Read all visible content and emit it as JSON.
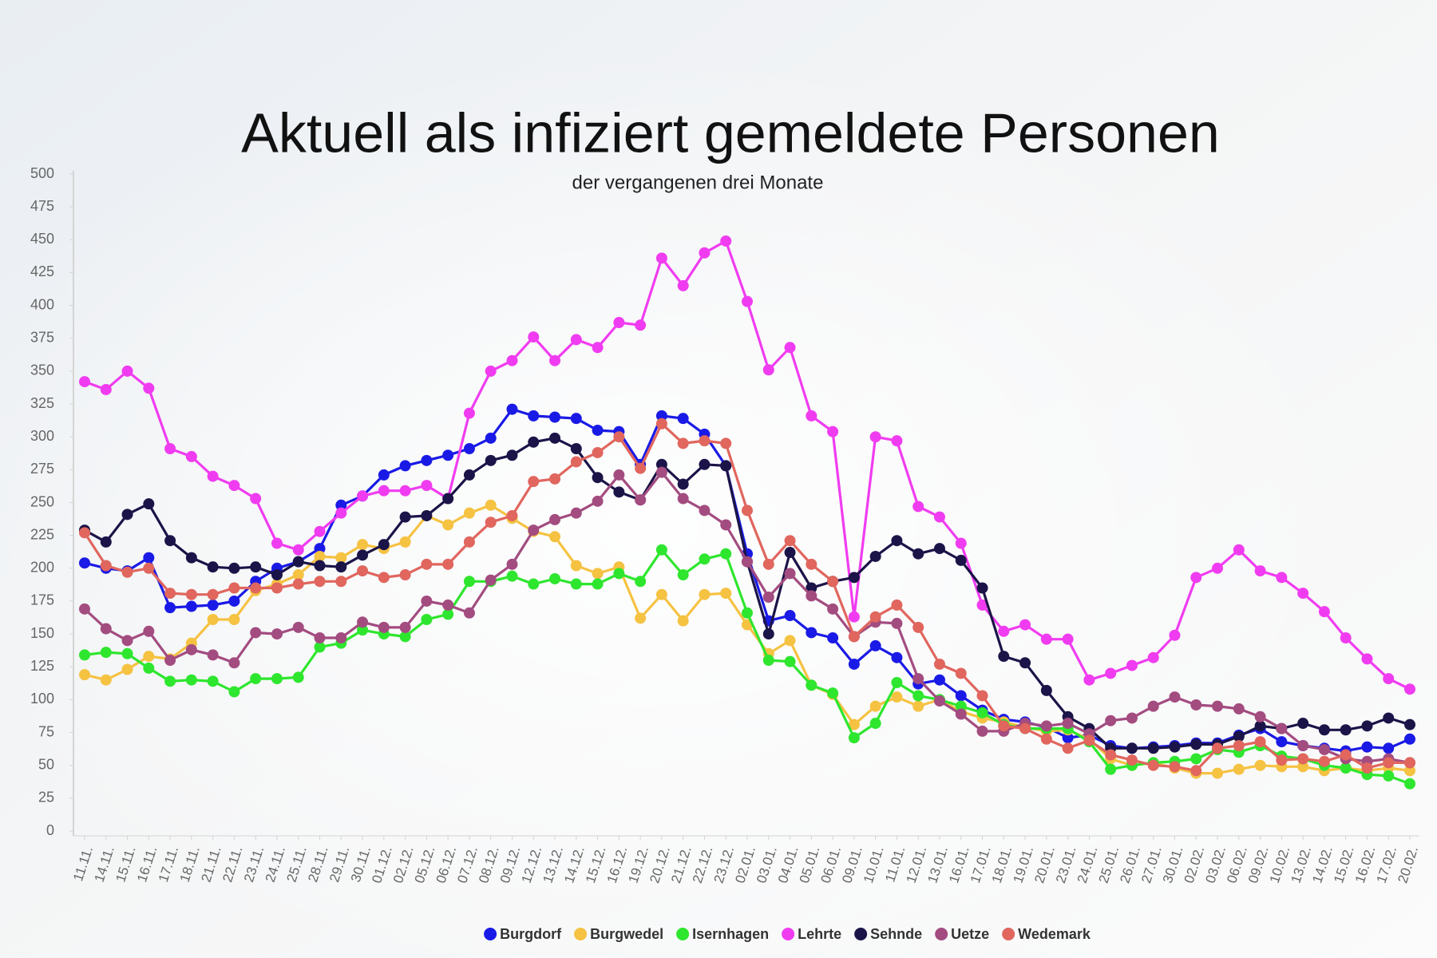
{
  "chart_data": {
    "type": "line",
    "title": "Aktuell als infiziert gemeldete Personen",
    "subtitle": "der vergangenen drei Monate",
    "categories": [
      "11.11.",
      "14.11.",
      "15.11.",
      "16.11.",
      "17.11.",
      "18.11.",
      "21.11.",
      "22.11.",
      "23.11.",
      "24.11.",
      "25.11.",
      "28.11.",
      "29.11.",
      "30.11.",
      "01.12.",
      "02.12.",
      "05.12.",
      "06.12.",
      "07.12.",
      "08.12.",
      "09.12.",
      "12.12.",
      "13.12.",
      "14.12.",
      "15.12.",
      "16.12.",
      "19.12.",
      "20.12.",
      "21.12.",
      "22.12.",
      "23.12.",
      "02.01.",
      "03.01.",
      "04.01.",
      "05.01.",
      "06.01.",
      "09.01.",
      "10.01.",
      "11.01.",
      "12.01.",
      "13.01.",
      "16.01.",
      "17.01.",
      "18.01.",
      "19.01.",
      "20.01.",
      "23.01.",
      "24.01.",
      "25.01.",
      "26.01.",
      "27.01.",
      "30.01.",
      "02.02.",
      "03.02.",
      "06.02.",
      "09.02.",
      "10.02.",
      "13.02.",
      "14.02.",
      "15.02.",
      "16.02.",
      "17.02.",
      "20.02."
    ],
    "series": [
      {
        "name": "Burgdorf",
        "color": "#1a1ae6",
        "values": [
          204,
          200,
          198,
          208,
          170,
          171,
          172,
          175,
          190,
          200,
          205,
          215,
          248,
          255,
          271,
          278,
          282,
          286,
          291,
          299,
          321,
          316,
          315,
          314,
          305,
          304,
          279,
          316,
          314,
          302,
          278,
          211,
          160,
          164,
          151,
          147,
          127,
          141,
          132,
          112,
          115,
          103,
          92,
          85,
          83,
          79,
          71,
          73,
          65,
          63,
          64,
          65,
          67,
          67,
          73,
          78,
          68,
          65,
          63,
          61,
          64,
          63,
          70
        ]
      },
      {
        "name": "Burgwedel",
        "color": "#f5c242",
        "values": [
          119,
          115,
          123,
          133,
          131,
          143,
          161,
          161,
          183,
          188,
          195,
          209,
          208,
          218,
          215,
          220,
          240,
          233,
          242,
          248,
          238,
          228,
          224,
          202,
          196,
          201,
          162,
          180,
          160,
          180,
          181,
          157,
          135,
          145,
          111,
          104,
          81,
          95,
          102,
          95,
          100,
          91,
          86,
          83,
          79,
          76,
          77,
          70,
          55,
          50,
          52,
          48,
          44,
          44,
          47,
          50,
          49,
          49,
          46,
          48,
          46,
          48,
          46
        ]
      },
      {
        "name": "Isernhagen",
        "color": "#2ee62e",
        "values": [
          134,
          136,
          135,
          124,
          114,
          115,
          114,
          106,
          116,
          116,
          117,
          140,
          143,
          153,
          150,
          148,
          161,
          165,
          190,
          190,
          194,
          188,
          192,
          188,
          188,
          196,
          190,
          214,
          195,
          207,
          211,
          166,
          130,
          129,
          111,
          105,
          71,
          82,
          113,
          103,
          100,
          95,
          90,
          81,
          78,
          78,
          78,
          68,
          47,
          50,
          52,
          53,
          55,
          62,
          60,
          65,
          57,
          55,
          50,
          48,
          43,
          42,
          36
        ]
      },
      {
        "name": "Lehrte",
        "color": "#f03cf0",
        "values": [
          342,
          336,
          350,
          337,
          291,
          285,
          270,
          263,
          253,
          219,
          214,
          228,
          242,
          255,
          259,
          259,
          263,
          253,
          318,
          350,
          358,
          376,
          358,
          374,
          368,
          387,
          385,
          436,
          415,
          440,
          449,
          403,
          351,
          368,
          316,
          304,
          163,
          300,
          297,
          247,
          239,
          219,
          172,
          152,
          157,
          146,
          146,
          115,
          120,
          126,
          132,
          149,
          193,
          200,
          214,
          198,
          193,
          181,
          167,
          147,
          131,
          116,
          108
        ]
      },
      {
        "name": "Sehnde",
        "color": "#1b1448",
        "values": [
          229,
          220,
          241,
          249,
          221,
          208,
          201,
          200,
          201,
          195,
          205,
          202,
          201,
          210,
          218,
          239,
          240,
          253,
          271,
          282,
          286,
          296,
          299,
          291,
          269,
          258,
          252,
          279,
          264,
          279,
          278,
          205,
          150,
          212,
          185,
          190,
          193,
          209,
          221,
          211,
          215,
          206,
          185,
          133,
          128,
          107,
          87,
          78,
          63,
          63,
          63,
          64,
          66,
          66,
          72,
          80,
          78,
          82,
          77,
          77,
          80,
          86,
          81
        ]
      },
      {
        "name": "Uetze",
        "color": "#a34c80",
        "values": [
          169,
          154,
          145,
          152,
          130,
          138,
          134,
          128,
          151,
          150,
          155,
          147,
          147,
          159,
          155,
          155,
          175,
          172,
          166,
          191,
          203,
          229,
          237,
          242,
          251,
          271,
          252,
          273,
          253,
          244,
          233,
          205,
          178,
          196,
          179,
          169,
          148,
          159,
          158,
          116,
          99,
          89,
          76,
          76,
          82,
          80,
          82,
          74,
          84,
          86,
          95,
          102,
          96,
          95,
          93,
          87,
          78,
          65,
          62,
          55,
          53,
          55,
          52
        ]
      },
      {
        "name": "Wedemark",
        "color": "#e0665e",
        "values": [
          227,
          202,
          197,
          200,
          181,
          180,
          180,
          185,
          185,
          185,
          188,
          190,
          190,
          198,
          193,
          195,
          203,
          203,
          220,
          235,
          240,
          266,
          268,
          281,
          288,
          300,
          276,
          310,
          295,
          297,
          295,
          244,
          203,
          221,
          203,
          190,
          148,
          163,
          172,
          155,
          127,
          120,
          103,
          80,
          78,
          70,
          63,
          69,
          58,
          54,
          50,
          49,
          46,
          63,
          65,
          68,
          54,
          55,
          53,
          58,
          48,
          52,
          52
        ]
      }
    ],
    "ylim": [
      0,
      500
    ],
    "yticks": [
      0,
      25,
      50,
      75,
      100,
      125,
      150,
      175,
      200,
      225,
      250,
      275,
      300,
      325,
      350,
      375,
      400,
      425,
      450,
      475,
      500
    ],
    "grid": false,
    "legend": "bottom"
  }
}
